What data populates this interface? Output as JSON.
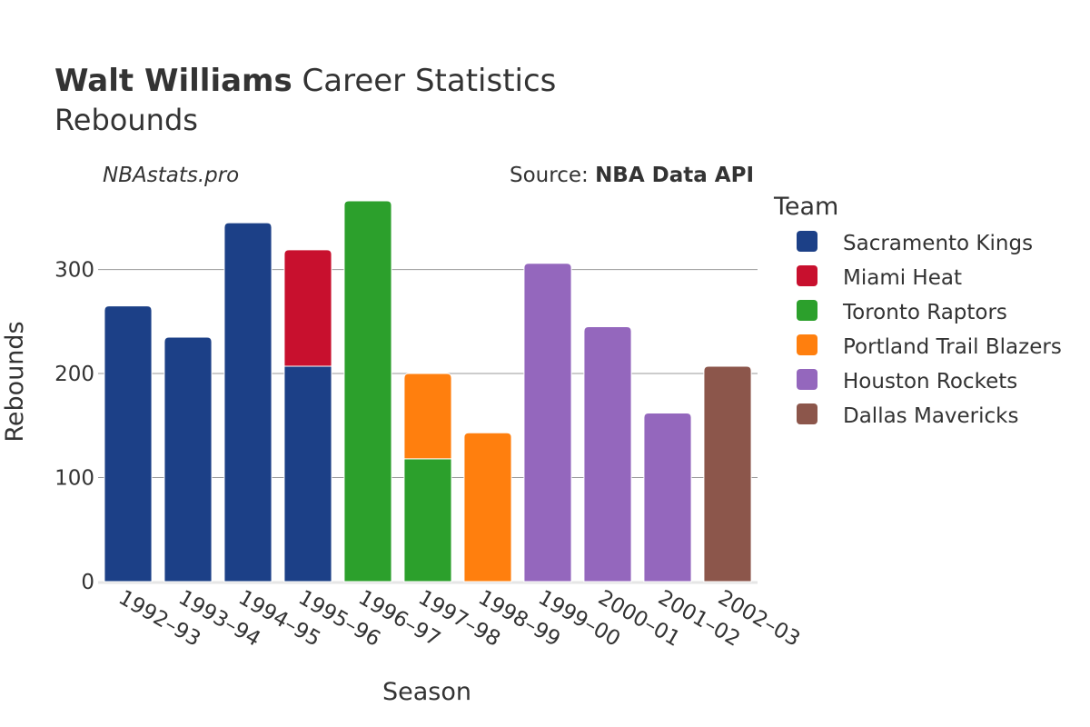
{
  "header": {
    "player_name": "Walt Williams",
    "title_rest": " Career Statistics",
    "subtitle": "Rebounds",
    "brand": "NBAstats.pro",
    "source_prefix": "Source: ",
    "source_name": "NBA Data API"
  },
  "chart_data": {
    "type": "bar",
    "stacked": true,
    "xlabel": "Season",
    "ylabel": "Rebounds",
    "ylim": [
      0,
      380
    ],
    "yticks": [
      0,
      100,
      200,
      300
    ],
    "grid": true,
    "legend_title": "Team",
    "legend_position": "right",
    "categories": [
      "1992–93",
      "1993–94",
      "1994–95",
      "1995–96",
      "1996–97",
      "1997–98",
      "1998–99",
      "1999–00",
      "2000–01",
      "2001–02",
      "2002–03"
    ],
    "series": [
      {
        "name": "Sacramento Kings",
        "color": "#1c4087",
        "values": [
          265,
          235,
          345,
          207,
          0,
          0,
          0,
          0,
          0,
          0,
          0
        ]
      },
      {
        "name": "Miami Heat",
        "color": "#c8102e",
        "values": [
          0,
          0,
          0,
          112,
          0,
          0,
          0,
          0,
          0,
          0,
          0
        ]
      },
      {
        "name": "Toronto Raptors",
        "color": "#2ca02c",
        "values": [
          0,
          0,
          0,
          0,
          366,
          118,
          0,
          0,
          0,
          0,
          0
        ]
      },
      {
        "name": "Portland Trail Blazers",
        "color": "#ff7f0e",
        "values": [
          0,
          0,
          0,
          0,
          0,
          82,
          143,
          0,
          0,
          0,
          0
        ]
      },
      {
        "name": "Houston Rockets",
        "color": "#9467bd",
        "values": [
          0,
          0,
          0,
          0,
          0,
          0,
          0,
          306,
          245,
          162,
          0
        ]
      },
      {
        "name": "Dallas Mavericks",
        "color": "#8c564b",
        "values": [
          0,
          0,
          0,
          0,
          0,
          0,
          0,
          0,
          0,
          0,
          207
        ]
      }
    ]
  }
}
